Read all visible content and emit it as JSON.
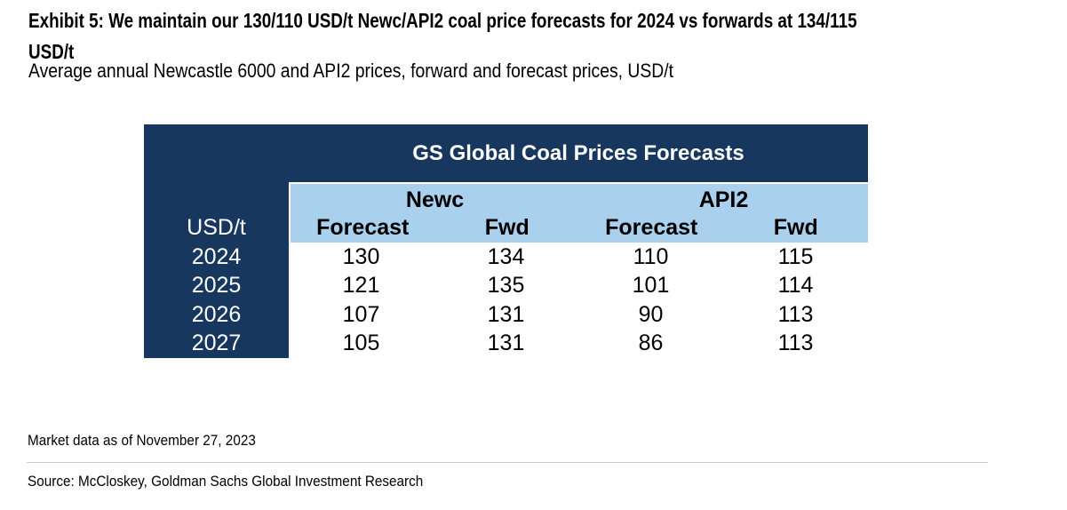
{
  "page": {
    "title_line1": "Exhibit 5: We maintain our 130/110 USD/t Newc/API2 coal price forecasts for 2024 vs forwards at 134/115",
    "title_line2": "USD/t",
    "subtitle": "Average annual Newcastle 6000 and API2 prices, forward and forecast prices, USD/t"
  },
  "table": {
    "title": "GS Global Coal Prices Forecasts",
    "unit_label": "USD/t",
    "group_headers": [
      {
        "label": "Newc"
      },
      {
        "label": "API2"
      }
    ],
    "column_headers": [
      "Forecast",
      "Fwd",
      "Forecast",
      "Fwd"
    ],
    "rows": [
      {
        "year": "2024",
        "values": [
          "130",
          "134",
          "110",
          "115"
        ]
      },
      {
        "year": "2025",
        "values": [
          "121",
          "135",
          "101",
          "114"
        ]
      },
      {
        "year": "2026",
        "values": [
          "107",
          "131",
          "90",
          "113"
        ]
      },
      {
        "year": "2027",
        "values": [
          "105",
          "131",
          "86",
          "113"
        ]
      }
    ]
  },
  "footer": {
    "market_note": "Market data as of November 27, 2023",
    "source": "Source: McCloskey, Goldman Sachs Global Investment Research"
  },
  "colors": {
    "navy": "#17375e",
    "light_blue": "#a9d1ee",
    "text": "#000000",
    "divider": "#c9c9c9"
  },
  "chart_data": {
    "type": "table",
    "title": "GS Global Coal Prices Forecasts",
    "units": "USD/t",
    "categories": [
      "2024",
      "2025",
      "2026",
      "2027"
    ],
    "series": [
      {
        "name": "Newc Forecast",
        "values": [
          130,
          121,
          107,
          105
        ]
      },
      {
        "name": "Newc Fwd",
        "values": [
          134,
          135,
          131,
          131
        ]
      },
      {
        "name": "API2 Forecast",
        "values": [
          110,
          101,
          90,
          86
        ]
      },
      {
        "name": "API2 Fwd",
        "values": [
          115,
          114,
          113,
          113
        ]
      }
    ]
  }
}
